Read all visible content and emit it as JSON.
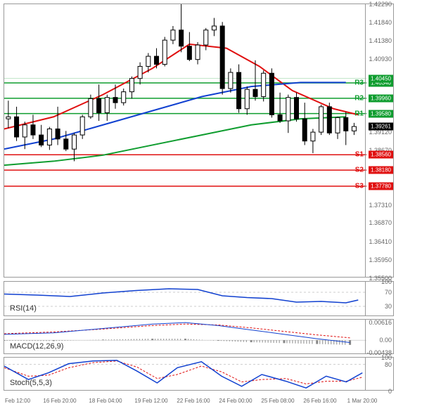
{
  "main": {
    "type": "candlestick",
    "y_min": 1.355,
    "y_max": 1.4229,
    "y_ticks": [
      1.355,
      1.3595,
      1.3641,
      1.3687,
      1.3731,
      1.3778,
      1.3818,
      1.3856,
      1.3867,
      1.3912,
      1.39261,
      1.3958,
      1.3996,
      1.4034,
      1.4045,
      1.4093,
      1.4138,
      1.4184,
      1.4229
    ],
    "current_price": 1.39261,
    "grid_color": "#eeeeee",
    "bg_color": "#ffffff",
    "candle_up_fill": "#ffffff",
    "candle_up_border": "#000000",
    "candle_down_fill": "#000000",
    "candle_down_border": "#000000",
    "levels": [
      {
        "name": "R3",
        "value": 1.4034,
        "color": "#0f9d2f",
        "label_color": "#0f9d2f"
      },
      {
        "name": "R2",
        "value": 1.3996,
        "color": "#0f9d2f",
        "label_color": "#0f9d2f"
      },
      {
        "name": "R1",
        "value": 1.3958,
        "color": "#0f9d2f",
        "label_color": "#0f9d2f"
      },
      {
        "name": "S1",
        "value": 1.3856,
        "color": "#e01010",
        "label_color": "#e01010"
      },
      {
        "name": "S2",
        "value": 1.3818,
        "color": "#e01010",
        "label_color": "#e01010"
      },
      {
        "name": "S3",
        "value": 1.3778,
        "color": "#e01010",
        "label_color": "#e01010"
      }
    ],
    "mas": [
      {
        "name": "ma_red",
        "color": "#e01010",
        "width": 2,
        "points": [
          [
            0,
            1.392
          ],
          [
            60,
            1.395
          ],
          [
            120,
            1.4005
          ],
          [
            180,
            1.407
          ],
          [
            225,
            1.413
          ],
          [
            270,
            1.412
          ],
          [
            310,
            1.4075
          ],
          [
            350,
            1.4015
          ],
          [
            400,
            1.397
          ],
          [
            430,
            1.3955
          ]
        ]
      },
      {
        "name": "ma_blue",
        "color": "#1040d0",
        "width": 2,
        "points": [
          [
            0,
            1.387
          ],
          [
            60,
            1.3895
          ],
          [
            120,
            1.393
          ],
          [
            180,
            1.3965
          ],
          [
            240,
            1.4
          ],
          [
            300,
            1.4025
          ],
          [
            360,
            1.4035
          ],
          [
            415,
            1.4035
          ]
        ]
      },
      {
        "name": "ma_green",
        "color": "#0f9d2f",
        "width": 2,
        "points": [
          [
            0,
            1.383
          ],
          [
            60,
            1.384
          ],
          [
            120,
            1.3855
          ],
          [
            180,
            1.388
          ],
          [
            240,
            1.3905
          ],
          [
            300,
            1.393
          ],
          [
            360,
            1.3945
          ],
          [
            415,
            1.395
          ]
        ]
      }
    ],
    "candles": [
      {
        "x": 5,
        "o": 1.3945,
        "h": 1.399,
        "l": 1.3922,
        "c": 1.395
      },
      {
        "x": 15,
        "o": 1.395,
        "h": 1.3975,
        "l": 1.389,
        "c": 1.39
      },
      {
        "x": 25,
        "o": 1.39,
        "h": 1.3938,
        "l": 1.387,
        "c": 1.393
      },
      {
        "x": 35,
        "o": 1.393,
        "h": 1.3955,
        "l": 1.3895,
        "c": 1.3905
      },
      {
        "x": 45,
        "o": 1.3905,
        "h": 1.393,
        "l": 1.3875,
        "c": 1.388
      },
      {
        "x": 55,
        "o": 1.388,
        "h": 1.3925,
        "l": 1.3868,
        "c": 1.392
      },
      {
        "x": 65,
        "o": 1.392,
        "h": 1.3975,
        "l": 1.388,
        "c": 1.3895
      },
      {
        "x": 75,
        "o": 1.3895,
        "h": 1.3915,
        "l": 1.3865,
        "c": 1.387
      },
      {
        "x": 85,
        "o": 1.387,
        "h": 1.391,
        "l": 1.384,
        "c": 1.3905
      },
      {
        "x": 95,
        "o": 1.3905,
        "h": 1.3955,
        "l": 1.3895,
        "c": 1.395
      },
      {
        "x": 105,
        "o": 1.395,
        "h": 1.4005,
        "l": 1.3945,
        "c": 1.3995
      },
      {
        "x": 115,
        "o": 1.3995,
        "h": 1.403,
        "l": 1.394,
        "c": 1.396
      },
      {
        "x": 125,
        "o": 1.396,
        "h": 1.4005,
        "l": 1.394,
        "c": 1.3998
      },
      {
        "x": 135,
        "o": 1.3998,
        "h": 1.403,
        "l": 1.397,
        "c": 1.3985
      },
      {
        "x": 145,
        "o": 1.3985,
        "h": 1.402,
        "l": 1.3978,
        "c": 1.4012
      },
      {
        "x": 155,
        "o": 1.4012,
        "h": 1.405,
        "l": 1.3995,
        "c": 1.4045
      },
      {
        "x": 165,
        "o": 1.4045,
        "h": 1.4085,
        "l": 1.403,
        "c": 1.4075
      },
      {
        "x": 175,
        "o": 1.4075,
        "h": 1.4108,
        "l": 1.406,
        "c": 1.41
      },
      {
        "x": 185,
        "o": 1.41,
        "h": 1.412,
        "l": 1.407,
        "c": 1.408
      },
      {
        "x": 195,
        "o": 1.408,
        "h": 1.4148,
        "l": 1.4075,
        "c": 1.414
      },
      {
        "x": 205,
        "o": 1.414,
        "h": 1.4175,
        "l": 1.413,
        "c": 1.4165
      },
      {
        "x": 215,
        "o": 1.4165,
        "h": 1.423,
        "l": 1.411,
        "c": 1.4125
      },
      {
        "x": 225,
        "o": 1.4125,
        "h": 1.416,
        "l": 1.4088,
        "c": 1.4092
      },
      {
        "x": 235,
        "o": 1.4092,
        "h": 1.4135,
        "l": 1.408,
        "c": 1.4128
      },
      {
        "x": 245,
        "o": 1.4128,
        "h": 1.417,
        "l": 1.4115,
        "c": 1.4165
      },
      {
        "x": 255,
        "o": 1.4165,
        "h": 1.4195,
        "l": 1.415,
        "c": 1.4175
      },
      {
        "x": 265,
        "o": 1.4175,
        "h": 1.4185,
        "l": 1.4005,
        "c": 1.402
      },
      {
        "x": 275,
        "o": 1.402,
        "h": 1.407,
        "l": 1.401,
        "c": 1.406
      },
      {
        "x": 285,
        "o": 1.406,
        "h": 1.408,
        "l": 1.396,
        "c": 1.397
      },
      {
        "x": 295,
        "o": 1.397,
        "h": 1.4025,
        "l": 1.3955,
        "c": 1.4018
      },
      {
        "x": 305,
        "o": 1.4018,
        "h": 1.409,
        "l": 1.399,
        "c": 1.4
      },
      {
        "x": 315,
        "o": 1.4,
        "h": 1.4065,
        "l": 1.3988,
        "c": 1.4058
      },
      {
        "x": 325,
        "o": 1.4058,
        "h": 1.407,
        "l": 1.3948,
        "c": 1.3955
      },
      {
        "x": 335,
        "o": 1.3955,
        "h": 1.401,
        "l": 1.3935,
        "c": 1.394
      },
      {
        "x": 345,
        "o": 1.394,
        "h": 1.4005,
        "l": 1.391,
        "c": 1.3998
      },
      {
        "x": 355,
        "o": 1.3998,
        "h": 1.401,
        "l": 1.3938,
        "c": 1.3945
      },
      {
        "x": 365,
        "o": 1.3945,
        "h": 1.3985,
        "l": 1.388,
        "c": 1.389
      },
      {
        "x": 375,
        "o": 1.389,
        "h": 1.392,
        "l": 1.386,
        "c": 1.3912
      },
      {
        "x": 385,
        "o": 1.3912,
        "h": 1.398,
        "l": 1.3905,
        "c": 1.3975
      },
      {
        "x": 395,
        "o": 1.3975,
        "h": 1.3985,
        "l": 1.3905,
        "c": 1.391
      },
      {
        "x": 405,
        "o": 1.391,
        "h": 1.395,
        "l": 1.3895,
        "c": 1.3948
      },
      {
        "x": 415,
        "o": 1.3948,
        "h": 1.3962,
        "l": 1.388,
        "c": 1.3915
      },
      {
        "x": 425,
        "o": 1.3915,
        "h": 1.3935,
        "l": 1.3905,
        "c": 1.3926
      }
    ]
  },
  "x_axis": {
    "labels": [
      "Feb 12:00",
      "16 Feb 20:00",
      "18 Feb 04:00",
      "19 Feb 12:00",
      "22 Feb 16:00",
      "24 Feb 00:00",
      "25 Feb 08:00",
      "26 Feb 16:00",
      "1 Mar 20:00"
    ],
    "positions": [
      20,
      80,
      145,
      210,
      270,
      330,
      390,
      450,
      510
    ]
  },
  "rsi": {
    "label": "RSI(14)",
    "y_ticks": [
      30,
      70,
      100
    ],
    "color": "#1040d0",
    "grid_color": "#cccccc",
    "points": [
      [
        0,
        65
      ],
      [
        40,
        62
      ],
      [
        80,
        58
      ],
      [
        120,
        68
      ],
      [
        160,
        75
      ],
      [
        200,
        80
      ],
      [
        235,
        78
      ],
      [
        265,
        60
      ],
      [
        295,
        55
      ],
      [
        325,
        52
      ],
      [
        355,
        42
      ],
      [
        385,
        44
      ],
      [
        415,
        40
      ],
      [
        430,
        48
      ]
    ]
  },
  "macd": {
    "label": "MACD(12,26,9)",
    "y_ticks": [
      -0.00438,
      0.0,
      0.00616
    ],
    "main_color": "#1040d0",
    "signal_color": "#e01010",
    "hist_color": "#888888",
    "main": [
      [
        0,
        0.002
      ],
      [
        60,
        0.0025
      ],
      [
        120,
        0.004
      ],
      [
        180,
        0.0055
      ],
      [
        220,
        0.006
      ],
      [
        260,
        0.005
      ],
      [
        300,
        0.0035
      ],
      [
        340,
        0.002
      ],
      [
        380,
        0.0005
      ],
      [
        420,
        -0.0008
      ]
    ],
    "signal": [
      [
        0,
        0.0022
      ],
      [
        60,
        0.0028
      ],
      [
        120,
        0.0038
      ],
      [
        180,
        0.005
      ],
      [
        220,
        0.0055
      ],
      [
        260,
        0.0052
      ],
      [
        300,
        0.0042
      ],
      [
        340,
        0.003
      ],
      [
        380,
        0.0018
      ],
      [
        420,
        0.0008
      ]
    ]
  },
  "stoch": {
    "label": "Stoch(5,5,3)",
    "y_ticks": [
      0,
      80,
      100
    ],
    "k_color": "#1040d0",
    "d_color": "#e01010",
    "grid_color": "#cccccc",
    "k": [
      [
        0,
        75
      ],
      [
        30,
        35
      ],
      [
        55,
        55
      ],
      [
        80,
        82
      ],
      [
        110,
        90
      ],
      [
        140,
        92
      ],
      [
        165,
        60
      ],
      [
        190,
        25
      ],
      [
        215,
        70
      ],
      [
        245,
        88
      ],
      [
        270,
        45
      ],
      [
        295,
        15
      ],
      [
        320,
        50
      ],
      [
        350,
        30
      ],
      [
        375,
        10
      ],
      [
        400,
        45
      ],
      [
        425,
        28
      ],
      [
        445,
        55
      ]
    ],
    "d": [
      [
        0,
        70
      ],
      [
        30,
        45
      ],
      [
        55,
        48
      ],
      [
        80,
        70
      ],
      [
        110,
        85
      ],
      [
        140,
        90
      ],
      [
        165,
        72
      ],
      [
        190,
        38
      ],
      [
        215,
        50
      ],
      [
        245,
        75
      ],
      [
        270,
        58
      ],
      [
        295,
        28
      ],
      [
        320,
        35
      ],
      [
        350,
        38
      ],
      [
        375,
        22
      ],
      [
        400,
        30
      ],
      [
        425,
        30
      ],
      [
        445,
        42
      ]
    ]
  }
}
